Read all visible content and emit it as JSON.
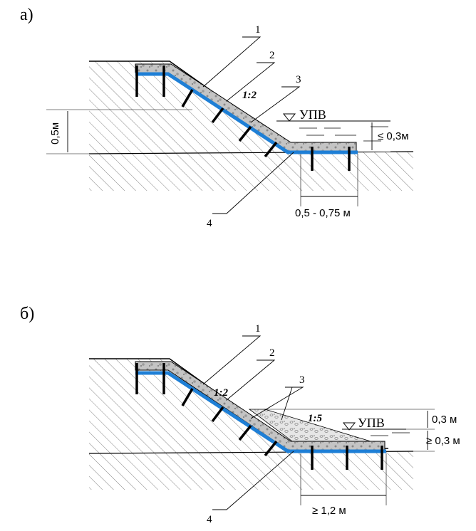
{
  "panel_a": {
    "label": "а)",
    "callouts": [
      "1",
      "2",
      "3",
      "4"
    ],
    "slope_ratio": "1:2",
    "water_level_label": "УПВ",
    "dim_left": "0,5м",
    "dim_right": "≤ 0,3м",
    "dim_bottom": "0,5 - 0,75 м"
  },
  "panel_b": {
    "label": "б)",
    "callouts": [
      "1",
      "2",
      "3",
      "4"
    ],
    "slope_ratio": "1:2",
    "slope_ratio_fill": "1:5",
    "water_level_label": "УПВ",
    "dim_right_top": "0,3 м",
    "dim_right_bottom": "≥ 0,3 м",
    "dim_bottom": "≥ 1,2 м"
  },
  "colors": {
    "filter_layer": "#1e7fd6",
    "stone_fill": "#bdbdbd",
    "hatch": "#555555",
    "lines": "#000000"
  }
}
